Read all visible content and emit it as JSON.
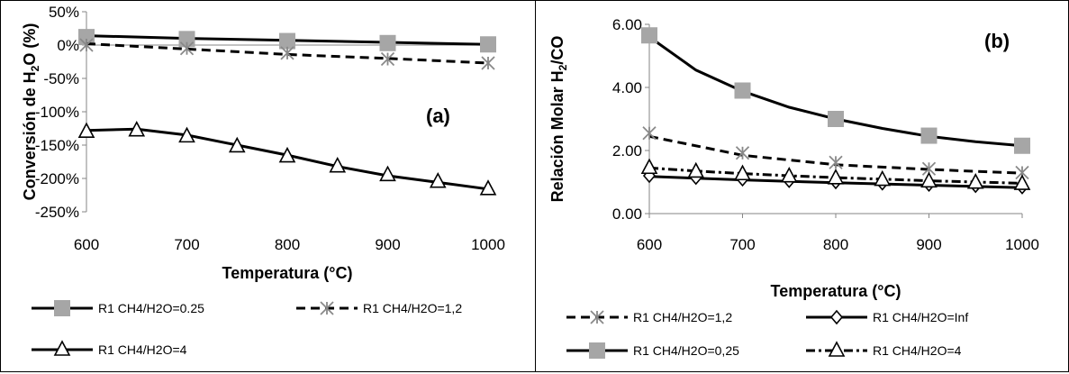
{
  "chart_data": [
    {
      "panel_label": "(a)",
      "type": "line",
      "xlabel": "Temperatura (°C)",
      "ylabel_parts": [
        "Conversión de H",
        "2",
        "O (%)"
      ],
      "xlim": [
        600,
        1000
      ],
      "ylim": [
        -250,
        50
      ],
      "x_ticks": [
        600,
        700,
        800,
        900,
        1000
      ],
      "y_ticks": [
        -250,
        -200,
        -150,
        -100,
        -50,
        0,
        50
      ],
      "y_tick_labels": [
        "-250%",
        "-200%",
        "-150%",
        "-100%",
        "-50%",
        "0%",
        "50%"
      ],
      "series": [
        {
          "name": "R1 CH4/H2O=0.25",
          "marker": "square",
          "dash": "solid",
          "line_x": [
            600,
            700,
            800,
            900,
            1000
          ],
          "line_y": [
            14,
            10,
            7,
            4,
            1
          ],
          "points": [
            [
              600,
              12
            ],
            [
              700,
              9
            ],
            [
              800,
              6
            ],
            [
              900,
              3
            ],
            [
              1000,
              1
            ]
          ]
        },
        {
          "name": "R1 CH4/H2O=1,2",
          "marker": "asterisk",
          "dash": "dashed",
          "line_x": [
            600,
            700,
            800,
            900,
            1000
          ],
          "line_y": [
            2,
            -6,
            -14,
            -20,
            -27
          ],
          "points": [
            [
              600,
              0
            ],
            [
              700,
              -5
            ],
            [
              800,
              -12
            ],
            [
              900,
              -21
            ],
            [
              1000,
              -27
            ]
          ]
        },
        {
          "name": "R1 CH4/H2O=4",
          "marker": "triangle",
          "dash": "solid",
          "line_x": [
            600,
            650,
            700,
            750,
            800,
            850,
            900,
            950,
            1000
          ],
          "line_y": [
            -128,
            -126,
            -135,
            -150,
            -165,
            -182,
            -196,
            -206,
            -216
          ],
          "points": [
            [
              600,
              -130
            ],
            [
              650,
              -128
            ],
            [
              700,
              -137
            ],
            [
              750,
              -152
            ],
            [
              800,
              -167
            ],
            [
              850,
              -182
            ],
            [
              900,
              -195
            ],
            [
              950,
              -205
            ],
            [
              1000,
              -216
            ]
          ]
        }
      ],
      "legend": "bottom"
    },
    {
      "panel_label": "(b)",
      "type": "line",
      "xlabel": "Temperatura (°C)",
      "ylabel_parts": [
        "Relación Molar H",
        "2",
        "/CO"
      ],
      "xlim": [
        600,
        1000
      ],
      "ylim": [
        0,
        6
      ],
      "x_ticks": [
        600,
        700,
        800,
        900,
        1000
      ],
      "y_ticks": [
        0,
        2,
        4,
        6
      ],
      "y_tick_labels": [
        "0.00",
        "2.00",
        "4.00",
        "6.00"
      ],
      "series": [
        {
          "name": "R1 CH4/H2O=1,2",
          "marker": "asterisk",
          "dash": "dashed",
          "line_x": [
            600,
            700,
            800,
            900,
            1000
          ],
          "line_y": [
            2.45,
            1.85,
            1.55,
            1.4,
            1.28
          ],
          "points": [
            [
              600,
              2.55
            ],
            [
              700,
              1.92
            ],
            [
              800,
              1.62
            ],
            [
              900,
              1.42
            ],
            [
              1000,
              1.3
            ]
          ]
        },
        {
          "name": "R1 CH4/H2O=Inf",
          "marker": "diamond",
          "dash": "solid",
          "line_x": [
            600,
            650,
            700,
            750,
            800,
            850,
            900,
            950,
            1000
          ],
          "line_y": [
            1.18,
            1.12,
            1.07,
            1.02,
            0.98,
            0.94,
            0.9,
            0.86,
            0.82
          ],
          "points": [
            [
              600,
              1.2
            ],
            [
              650,
              1.14
            ],
            [
              700,
              1.09
            ],
            [
              750,
              1.04
            ],
            [
              800,
              1.0
            ],
            [
              850,
              0.96
            ],
            [
              900,
              0.92
            ],
            [
              950,
              0.88
            ],
            [
              1000,
              0.84
            ]
          ]
        },
        {
          "name": "R1 CH4/H2O=0,25",
          "marker": "square",
          "dash": "solid",
          "line_x": [
            600,
            650,
            700,
            750,
            800,
            850,
            900,
            950,
            1000
          ],
          "line_y": [
            5.6,
            4.55,
            3.88,
            3.37,
            3.0,
            2.7,
            2.45,
            2.28,
            2.15
          ],
          "points": [
            [
              600,
              5.65
            ],
            [
              700,
              3.9
            ],
            [
              800,
              3.0
            ],
            [
              900,
              2.47
            ],
            [
              1000,
              2.15
            ]
          ]
        },
        {
          "name": "R1 CH4/H2O=4",
          "marker": "triangle",
          "dash": "dashdot",
          "line_x": [
            600,
            650,
            700,
            750,
            800,
            850,
            900,
            950,
            1000
          ],
          "line_y": [
            1.45,
            1.35,
            1.27,
            1.2,
            1.14,
            1.09,
            1.04,
            1.0,
            0.96
          ],
          "points": [
            [
              600,
              1.45
            ],
            [
              650,
              1.33
            ],
            [
              700,
              1.25
            ],
            [
              750,
              1.18
            ],
            [
              800,
              1.12
            ],
            [
              850,
              1.07
            ],
            [
              900,
              1.02
            ],
            [
              950,
              0.98
            ],
            [
              1000,
              0.94
            ]
          ]
        }
      ],
      "legend": "bottom"
    }
  ]
}
